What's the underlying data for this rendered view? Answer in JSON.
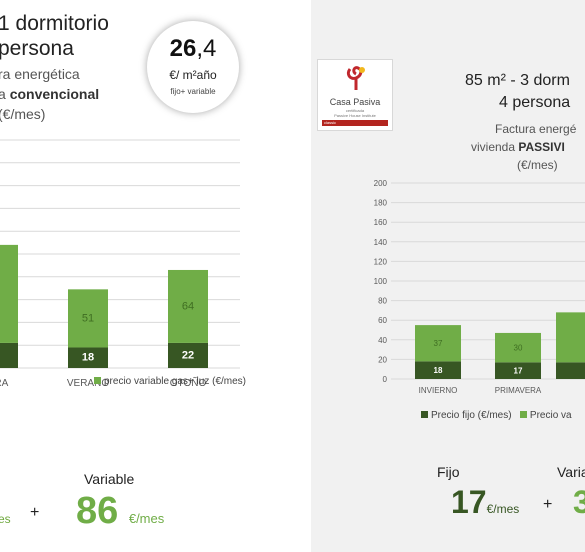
{
  "left": {
    "title": "1 dormitorio",
    "title2": "persona",
    "subtitle1": "ra energética",
    "subtitle2_plain": "a ",
    "subtitle2_bold": "convencional",
    "subtitle3": "(€/mes)",
    "badge": {
      "big_bold": "26",
      "big_rest": ",4",
      "unit": "€/ m²año",
      "note": "fijo+ variable"
    },
    "legend_variable": "precio variable gas+ luz (€/mes)",
    "summary": {
      "variable_label": "Variable",
      "fijo_unit": "es",
      "plus": "+",
      "variable_value": "86",
      "variable_unit": "€/mes"
    }
  },
  "right": {
    "logo": {
      "name": "Casa Pasiva",
      "line1": "certificada",
      "line2": "Passive House Institute",
      "bar": "classic"
    },
    "title": "85 m² - 3 dorm",
    "title2": "4 persona",
    "subtitle1": "Factura energé",
    "subtitle2_plain": "vivienda ",
    "subtitle2_bold": "PASSIVI",
    "subtitle3": "(€/mes)",
    "legend_fijo": "Precio fijo (€/mes)",
    "legend_variable": "Precio va",
    "summary": {
      "fijo_label": "Fijo",
      "fijo_value": "17",
      "fijo_unit": "€/mes",
      "plus": "+",
      "variable_label": "Varia",
      "variable_value": "3"
    }
  },
  "colors": {
    "fixed": "#375623",
    "variable": "#70ad47",
    "variable_text": "#6fa93f",
    "grid": "#d9d9d9",
    "axis_text": "#595959"
  },
  "chart_data": [
    {
      "type": "bar",
      "stacked": true,
      "categories": [
        "ERA",
        "VERANO",
        "OTOÑO"
      ],
      "series": [
        {
          "name": "",
          "values": [
            22,
            18,
            22
          ]
        },
        {
          "name": "precio variable gas+ luz (€/mes)",
          "values": [
            86,
            51,
            64
          ]
        }
      ],
      "data_labels": {
        "fixed": [
          "",
          "18",
          "22"
        ],
        "variable": [
          "",
          "51",
          "64"
        ]
      },
      "ylim": [
        0,
        200
      ],
      "grid": true
    },
    {
      "type": "bar",
      "stacked": true,
      "categories": [
        "INVIERNO",
        "PRIMAVERA",
        ""
      ],
      "series": [
        {
          "name": "Precio fijo (€/mes)",
          "values": [
            18,
            17,
            17
          ]
        },
        {
          "name": "Precio va",
          "values": [
            37,
            30,
            51
          ]
        }
      ],
      "data_labels": {
        "fixed": [
          "18",
          "17",
          ""
        ],
        "variable": [
          "37",
          "30",
          ""
        ]
      },
      "ylim": [
        0,
        200
      ],
      "yticks": [
        "0",
        "20",
        "40",
        "60",
        "80",
        "100",
        "120",
        "140",
        "160",
        "180",
        "200"
      ],
      "grid": true
    }
  ]
}
